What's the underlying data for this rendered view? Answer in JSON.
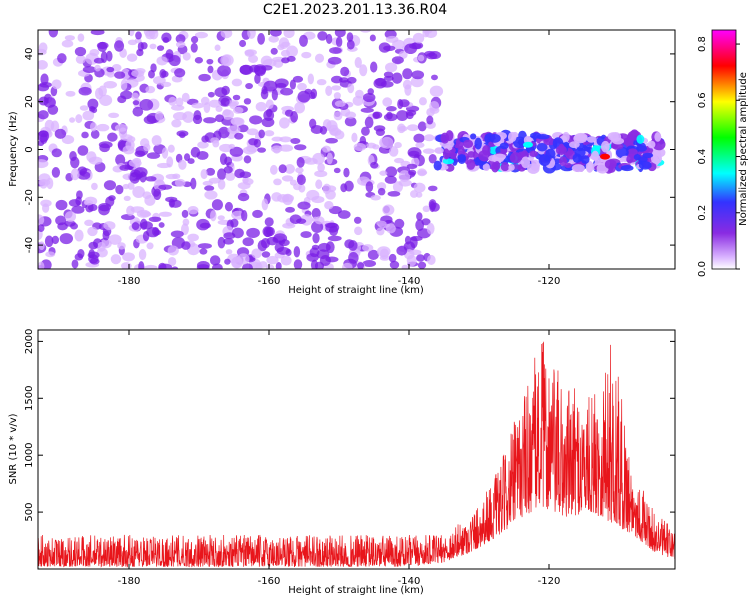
{
  "title": "C2E1.2023.201.13.36.R04",
  "chart_data": [
    {
      "type": "heatmap",
      "xlabel": "Height of straight line (km)",
      "ylabel": "Frequency (Hz)",
      "xlim": [
        -193,
        -102
      ],
      "ylim": [
        -50,
        50
      ],
      "x_ticks": [
        -180,
        -160,
        -140,
        -120
      ],
      "y_ticks": [
        -40,
        -20,
        0,
        20,
        40
      ],
      "colorbar": {
        "label": "Normalized spectral amplitude",
        "range": [
          0,
          0.85
        ],
        "ticks": [
          0.0,
          0.2,
          0.4,
          0.6,
          0.8
        ],
        "colors": [
          "#ffffff",
          "#d9b3ff",
          "#8a2be2",
          "#3333ff",
          "#00ffff",
          "#00ff00",
          "#ffff00",
          "#ff0000",
          "#ff00ff"
        ]
      },
      "blobs": [
        {
          "x_range": [
            -193,
            -136
          ],
          "freq_range": [
            -50,
            50
          ],
          "amplitude": 0.08
        },
        {
          "x_range": [
            -136,
            -104
          ],
          "freq_range": [
            -8,
            6
          ],
          "amplitude": 0.3
        },
        {
          "x": -123.0,
          "freq": 2,
          "amplitude": 0.45
        },
        {
          "x": -112.0,
          "freq": -3,
          "amplitude": 0.7
        }
      ]
    },
    {
      "type": "line",
      "xlabel": "Height of straight line (km)",
      "ylabel": "SNR (10 * v/v)",
      "xlim": [
        -193,
        -102
      ],
      "ylim": [
        0,
        2100
      ],
      "x_ticks": [
        -180,
        -160,
        -140,
        -120
      ],
      "y_ticks": [
        500,
        1000,
        1500,
        2000
      ],
      "series": [
        {
          "color": "#e8151b",
          "envelope": [
            {
              "x": -193,
              "lo": 20,
              "hi": 300
            },
            {
              "x": -140,
              "lo": 20,
              "hi": 300
            },
            {
              "x": -135,
              "lo": 60,
              "hi": 300
            },
            {
              "x": -131,
              "lo": 150,
              "hi": 500
            },
            {
              "x": -127,
              "lo": 300,
              "hi": 900
            },
            {
              "x": -124,
              "lo": 450,
              "hi": 1500
            },
            {
              "x": -121,
              "lo": 550,
              "hi": 2050
            },
            {
              "x": -118,
              "lo": 450,
              "hi": 1650
            },
            {
              "x": -114,
              "lo": 500,
              "hi": 1500
            },
            {
              "x": -111,
              "lo": 400,
              "hi": 2050
            },
            {
              "x": -108,
              "lo": 300,
              "hi": 900
            },
            {
              "x": -105,
              "lo": 150,
              "hi": 500
            },
            {
              "x": -102,
              "lo": 80,
              "hi": 350
            }
          ]
        }
      ]
    }
  ]
}
